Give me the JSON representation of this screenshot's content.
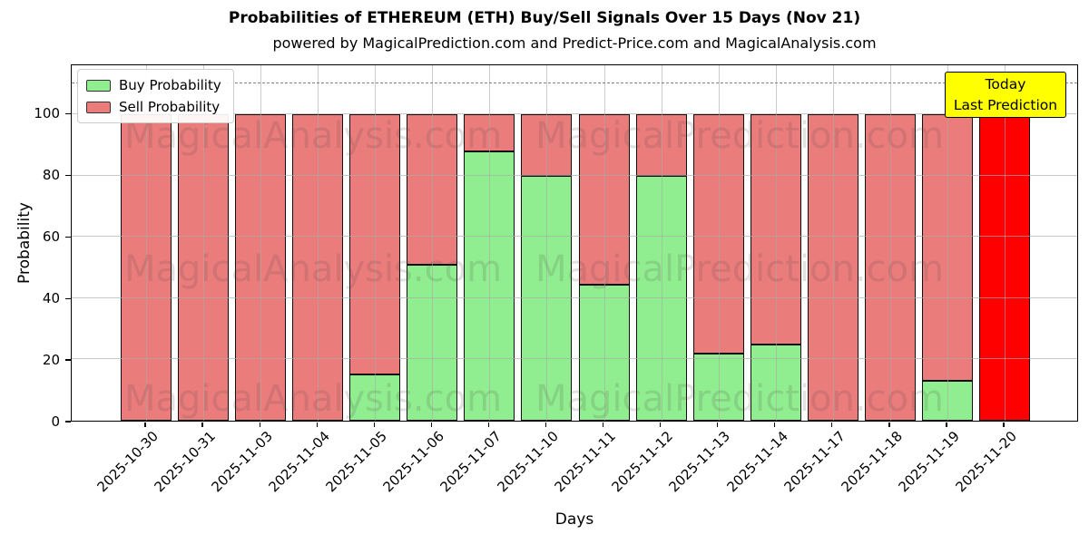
{
  "header": {
    "title": "Probabilities of ETHEREUM (ETH) Buy/Sell Signals Over 15 Days (Nov 21)",
    "subtitle": "powered by MagicalPrediction.com and Predict-Price.com and MagicalAnalysis.com"
  },
  "chart_data": {
    "type": "bar",
    "stacked": true,
    "title": "Probabilities of ETHEREUM (ETH) Buy/Sell Signals Over 15 Days (Nov 21)",
    "xlabel": "Days",
    "ylabel": "Probability",
    "categories": [
      "2025-10-30",
      "2025-10-31",
      "2025-11-03",
      "2025-11-04",
      "2025-11-05",
      "2025-11-06",
      "2025-11-07",
      "2025-11-10",
      "2025-11-11",
      "2025-11-12",
      "2025-11-13",
      "2025-11-14",
      "2025-11-17",
      "2025-11-18",
      "2025-11-19",
      "2025-11-20"
    ],
    "series": [
      {
        "name": "Buy Probability",
        "color": "#90ee90",
        "values": [
          0,
          0,
          0,
          0,
          15,
          51,
          88,
          80,
          44.5,
          80,
          22,
          25,
          0,
          0,
          13,
          0
        ]
      },
      {
        "name": "Sell Probability",
        "color": "#ea7c7c",
        "values": [
          100,
          100,
          100,
          100,
          85,
          49,
          12,
          20,
          55.5,
          20,
          78,
          75,
          100,
          100,
          87,
          100
        ]
      }
    ],
    "last_bar_sell_color": "#ff0000",
    "bar_edge_color": "#101010",
    "ylim": [
      0,
      116
    ],
    "yticks": [
      0,
      20,
      40,
      60,
      80,
      100
    ],
    "dashed_line_y": 110,
    "grid": true,
    "legend_position": "upper-left"
  },
  "legend": {
    "items": [
      {
        "label": "Buy Probability",
        "color": "#90ee90"
      },
      {
        "label": "Sell Probability",
        "color": "#ea7c7c"
      }
    ]
  },
  "annotation_box": {
    "lines": [
      "Today",
      "Last Prediction"
    ],
    "bg": "#ffff00"
  },
  "watermarks": {
    "left_text": "MagicalAnalysis.com",
    "right_text": "MagicalPrediction.com"
  }
}
